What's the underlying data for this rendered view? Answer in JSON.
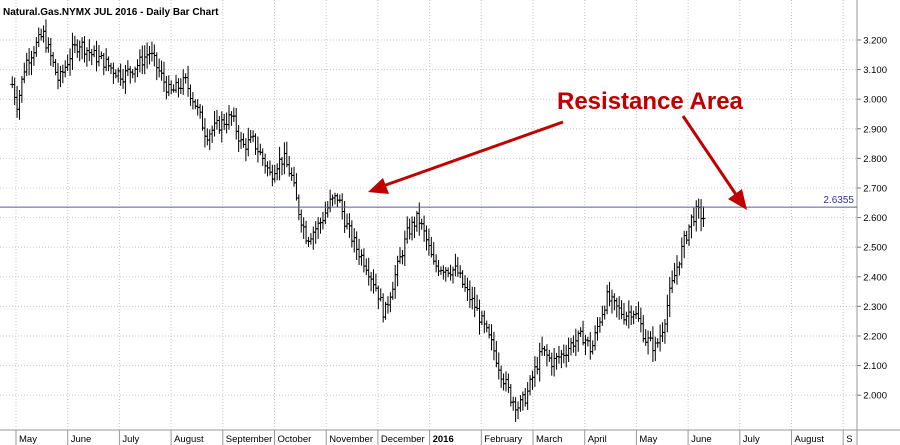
{
  "chart_data": {
    "type": "bar",
    "title": "Natural.Gas.NYMX JUL 2016 - Daily Bar Chart",
    "annotation": "Resistance Area",
    "resistance_level": 2.6355,
    "resistance_label": "2.6355",
    "y_ticks": [
      "3.200",
      "3.100",
      "3.000",
      "2.900",
      "2.800",
      "2.700",
      "2.600",
      "2.500",
      "2.400",
      "2.300",
      "2.200",
      "2.100",
      "2.000"
    ],
    "ylim": [
      1.925,
      3.31
    ],
    "x_labels": [
      {
        "label": "May",
        "t": 0.0
      },
      {
        "label": "June",
        "t": 1.0
      },
      {
        "label": "July",
        "t": 2.0
      },
      {
        "label": "August",
        "t": 3.0
      },
      {
        "label": "September",
        "t": 4.0
      },
      {
        "label": "October",
        "t": 5.0
      },
      {
        "label": "November",
        "t": 6.0
      },
      {
        "label": "December",
        "t": 7.0
      },
      {
        "label": "2016",
        "t": 8.0
      },
      {
        "label": "February",
        "t": 9.0
      },
      {
        "label": "March",
        "t": 10.0
      },
      {
        "label": "April",
        "t": 11.0
      },
      {
        "label": "May",
        "t": 12.0
      },
      {
        "label": "June",
        "t": 13.0
      },
      {
        "label": "July",
        "t": 14.0
      },
      {
        "label": "August",
        "t": 15.0
      },
      {
        "label": "S",
        "t": 16.0
      }
    ],
    "x_range_months": [
      -0.15,
      16.1
    ],
    "grid": true,
    "colors": {
      "bars": "#000000",
      "resistance_line": "#5a5a9a",
      "annotation": "#c00000",
      "grid": "#c8c8c8"
    },
    "price_path_months": [
      [
        -0.15,
        3.05
      ],
      [
        -0.05,
        2.98
      ],
      [
        0.1,
        3.12
      ],
      [
        0.3,
        3.18
      ],
      [
        0.45,
        3.22
      ],
      [
        0.6,
        3.14
      ],
      [
        0.75,
        3.06
      ],
      [
        0.85,
        3.1
      ],
      [
        1.0,
        3.16
      ],
      [
        1.15,
        3.19
      ],
      [
        1.4,
        3.15
      ],
      [
        1.6,
        3.13
      ],
      [
        1.8,
        3.1
      ],
      [
        2.0,
        3.08
      ],
      [
        2.3,
        3.12
      ],
      [
        2.5,
        3.16
      ],
      [
        2.7,
        3.09
      ],
      [
        2.9,
        3.02
      ],
      [
        3.2,
        3.06
      ],
      [
        3.4,
        2.98
      ],
      [
        3.6,
        2.88
      ],
      [
        3.9,
        2.92
      ],
      [
        4.1,
        2.94
      ],
      [
        4.3,
        2.84
      ],
      [
        4.5,
        2.86
      ],
      [
        4.7,
        2.8
      ],
      [
        4.85,
        2.74
      ],
      [
        4.95,
        2.78
      ],
      [
        5.1,
        2.8
      ],
      [
        5.25,
        2.74
      ],
      [
        5.38,
        2.63
      ],
      [
        5.55,
        2.53
      ],
      [
        5.8,
        2.58
      ],
      [
        6.0,
        2.65
      ],
      [
        6.15,
        2.67
      ],
      [
        6.3,
        2.58
      ],
      [
        6.5,
        2.5
      ],
      [
        6.7,
        2.44
      ],
      [
        6.9,
        2.36
      ],
      [
        7.05,
        2.27
      ],
      [
        7.15,
        2.34
      ],
      [
        7.3,
        2.43
      ],
      [
        7.5,
        2.55
      ],
      [
        7.7,
        2.6
      ],
      [
        7.85,
        2.53
      ],
      [
        8.0,
        2.44
      ],
      [
        8.2,
        2.43
      ],
      [
        8.45,
        2.42
      ],
      [
        8.6,
        2.36
      ],
      [
        8.8,
        2.3
      ],
      [
        9.0,
        2.22
      ],
      [
        9.15,
        2.16
      ],
      [
        9.3,
        2.08
      ],
      [
        9.5,
        1.99
      ],
      [
        9.65,
        1.96
      ],
      [
        9.8,
        2.0
      ],
      [
        9.95,
        2.08
      ],
      [
        10.1,
        2.15
      ],
      [
        10.3,
        2.11
      ],
      [
        10.5,
        2.14
      ],
      [
        10.7,
        2.18
      ],
      [
        10.9,
        2.2
      ],
      [
        11.05,
        2.15
      ],
      [
        11.2,
        2.25
      ],
      [
        11.35,
        2.33
      ],
      [
        11.5,
        2.3
      ],
      [
        11.7,
        2.27
      ],
      [
        11.85,
        2.29
      ],
      [
        12.0,
        2.24
      ],
      [
        12.1,
        2.19
      ],
      [
        12.3,
        2.16
      ],
      [
        12.45,
        2.24
      ],
      [
        12.55,
        2.33
      ],
      [
        12.7,
        2.43
      ],
      [
        12.85,
        2.52
      ],
      [
        13.0,
        2.6
      ],
      [
        13.1,
        2.62
      ],
      [
        13.22,
        2.6
      ]
    ]
  }
}
